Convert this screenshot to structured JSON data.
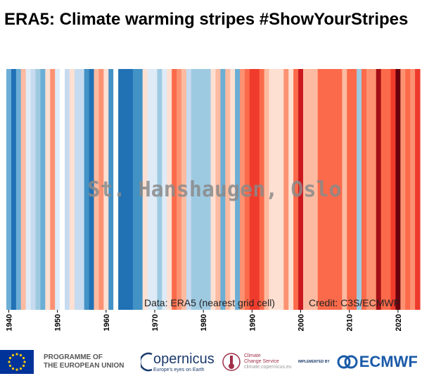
{
  "title": "ERA5: Climate warming stripes #ShowYourStripes",
  "chart_data": {
    "type": "heatmap",
    "location_label": "St. Hanshaugen, Oslo",
    "data_note": "Data: ERA5 (nearest grid cell)",
    "credit_note": "Credit: C3S/ECMWF",
    "x": [
      1940,
      1941,
      1942,
      1943,
      1944,
      1945,
      1946,
      1947,
      1948,
      1949,
      1950,
      1951,
      1952,
      1953,
      1954,
      1955,
      1956,
      1957,
      1958,
      1959,
      1960,
      1961,
      1962,
      1963,
      1964,
      1965,
      1966,
      1967,
      1968,
      1969,
      1970,
      1971,
      1972,
      1973,
      1974,
      1975,
      1976,
      1977,
      1978,
      1979,
      1980,
      1981,
      1982,
      1983,
      1984,
      1985,
      1986,
      1987,
      1988,
      1989,
      1990,
      1991,
      1992,
      1993,
      1994,
      1995,
      1996,
      1997,
      1998,
      1999,
      2000,
      2001,
      2002,
      2003,
      2004,
      2005,
      2006,
      2007,
      2008,
      2009,
      2010,
      2011,
      2012,
      2013,
      2014,
      2015,
      2016,
      2017,
      2018,
      2019,
      2020,
      2021,
      2022,
      2023,
      2024
    ],
    "stripe_colors": [
      "#6baed6",
      "#2171b5",
      "#6baed6",
      "#fcbba1",
      "#deebf7",
      "#c6dbef",
      "#9ecae1",
      "#6baed6",
      "#fee0d2",
      "#fc9272",
      "#deebf7",
      "#ffffff",
      "#c6dbef",
      "#fee0d2",
      "#c6dbef",
      "#c6dbef",
      "#4292c6",
      "#2171b5",
      "#fcbba1",
      "#fc9272",
      "#fee0d2",
      "#4292c6",
      "#ffffff",
      "#2171b5",
      "#2171b5",
      "#2171b5",
      "#4292c6",
      "#4292c6",
      "#fee0d2",
      "#deebf7",
      "#deebf7",
      "#9ecae1",
      "#deebf7",
      "#fee0d2",
      "#fb6a4a",
      "#fc9272",
      "#fcbba1",
      "#c6dbef",
      "#9ecae1",
      "#9ecae1",
      "#9ecae1",
      "#9ecae1",
      "#fee0d2",
      "#fcbba1",
      "#6baed6",
      "#fcbba1",
      "#fee0d2",
      "#6baed6",
      "#fc9272",
      "#fb6a4a",
      "#ef3b2c",
      "#ef3b2c",
      "#fb6a4a",
      "#fcbba1",
      "#fee0d2",
      "#fee0d2",
      "#fee0d2",
      "#fc9272",
      "#fee0d2",
      "#fb6a4a",
      "#cb181d",
      "#fcbba1",
      "#fcbba1",
      "#fcbba1",
      "#fb6a4a",
      "#fb6a4a",
      "#fb6a4a",
      "#fb6a4a",
      "#fb6a4a",
      "#fcbba1",
      "#fb6a4a",
      "#fb6a4a",
      "#9ecae1",
      "#fb6a4a",
      "#fc9272",
      "#fc9272",
      "#a50f15",
      "#fb6a4a",
      "#fb6a4a",
      "#ef3b2c",
      "#67000d",
      "#fc9272",
      "#fb6a4a",
      "#fc9272",
      "#ef3b2c"
    ],
    "x_ticks": [
      1940,
      1950,
      1960,
      1970,
      1980,
      1990,
      2000,
      2010,
      2020
    ],
    "xlim": [
      1940,
      2024
    ]
  },
  "footer": {
    "eu_line1": "PROGRAMME OF",
    "eu_line2": "THE EUROPEAN UNION",
    "copernicus": "opernicus",
    "copernicus_sub": "Europe's eyes on Earth",
    "c3s_line1": "Climate",
    "c3s_line2": "Change Service",
    "c3s_url": "climate.copernicus.eu",
    "implemented": "IMPLEMENTED BY",
    "ecmwf": "ECMWF"
  },
  "colors": {
    "eu_blue": "#003399",
    "eu_star": "#ffcc00",
    "copernicus_blue": "#1a3a6c",
    "c3s_red": "#a0304a",
    "ecmwf_blue": "#1a5aa8"
  }
}
